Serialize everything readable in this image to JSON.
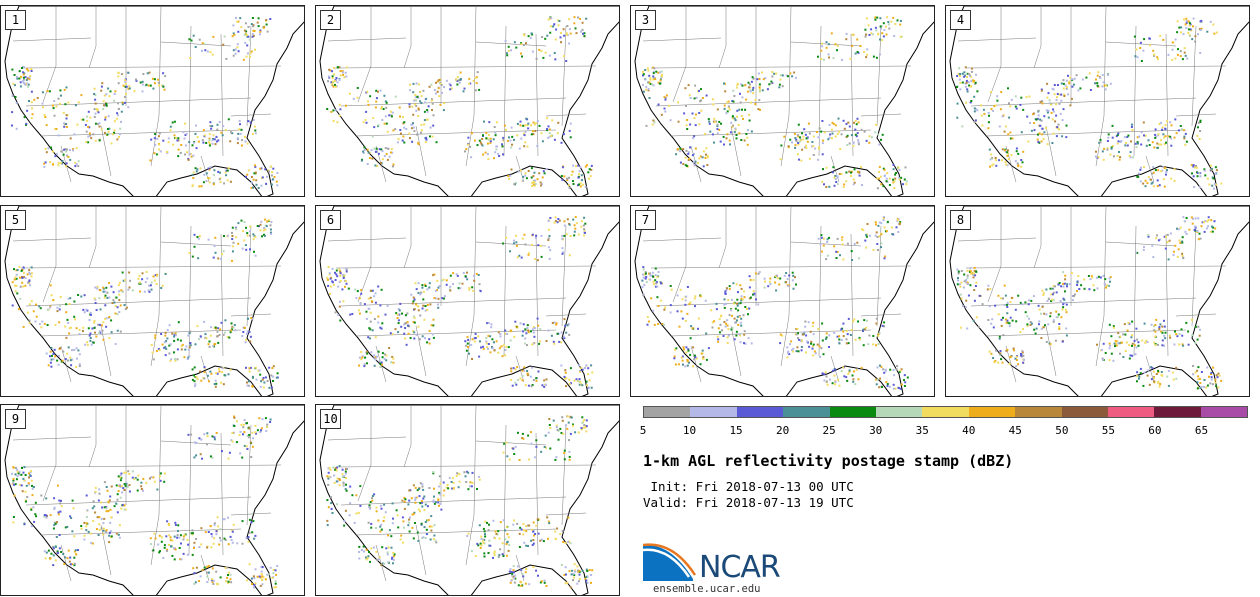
{
  "panels": [
    "1",
    "2",
    "3",
    "4",
    "5",
    "6",
    "7",
    "8",
    "9",
    "10"
  ],
  "colorbar": {
    "colors": [
      "#a3a3a3",
      "#b3b8e6",
      "#5a5ad6",
      "#4b9096",
      "#0a8a10",
      "#b5d8b8",
      "#f2dc60",
      "#eeae1c",
      "#b9873a",
      "#8b5a3a",
      "#ef5c82",
      "#6e1a3a",
      "#a84ca8"
    ],
    "ticks": [
      "5",
      "10",
      "15",
      "20",
      "25",
      "30",
      "35",
      "40",
      "45",
      "50",
      "55",
      "60",
      "65"
    ]
  },
  "title": "1-km AGL reflectivity postage stamp (dBZ)",
  "init_line": " Init: Fri 2018-07-13 00 UTC",
  "valid_line": "Valid: Fri 2018-07-13 19 UTC",
  "logo": {
    "text": "NCAR",
    "url": "ensemble.ucar.edu"
  }
}
